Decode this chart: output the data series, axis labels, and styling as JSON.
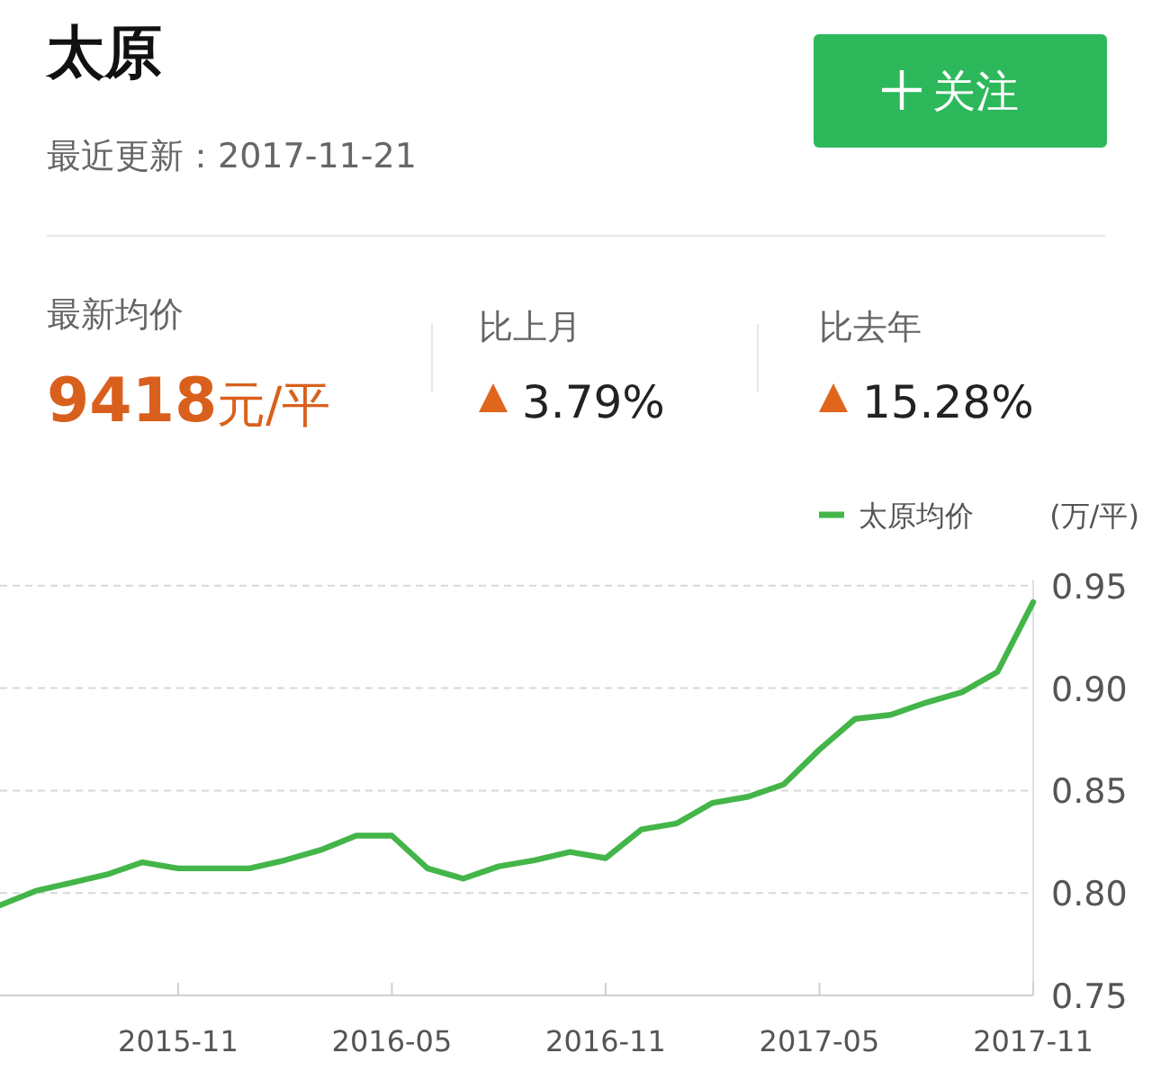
{
  "chart_data": {
    "type": "line",
    "title": "太原",
    "subtitle": "最近更新：2017-11-21",
    "annotations": [
      "关注",
      "最新均价",
      "9418元/平",
      "比上月",
      "3.79%",
      "比去年",
      "15.28%"
    ],
    "x": [
      "2015-06",
      "2015-07",
      "2015-08",
      "2015-09",
      "2015-10",
      "2015-11",
      "2015-12",
      "2016-01",
      "2016-02",
      "2016-03",
      "2016-04",
      "2016-05",
      "2016-06",
      "2016-07",
      "2016-08",
      "2016-09",
      "2016-10",
      "2016-11",
      "2016-12",
      "2017-01",
      "2017-02",
      "2017-03",
      "2017-04",
      "2017-05",
      "2017-06",
      "2017-07",
      "2017-08",
      "2017-09",
      "2017-10",
      "2017-11"
    ],
    "series": [
      {
        "name": "太原均价",
        "color": "#43b549",
        "values": [
          0.794,
          0.801,
          0.805,
          0.809,
          0.815,
          0.812,
          0.812,
          0.812,
          0.816,
          0.821,
          0.828,
          0.828,
          0.812,
          0.807,
          0.813,
          0.816,
          0.82,
          0.817,
          0.831,
          0.834,
          0.844,
          0.847,
          0.853,
          0.87,
          0.885,
          0.887,
          0.893,
          0.898,
          0.908,
          0.942
        ]
      }
    ],
    "ylabel": "(万/平)",
    "xlim": [
      "2015-06",
      "2017-11"
    ],
    "xticks": [
      "2015-11",
      "2016-05",
      "2016-11",
      "2017-05",
      "2017-11"
    ],
    "ylim": [
      0.75,
      0.953
    ],
    "yticks": [
      {
        "value": 0.75,
        "label": "0.75"
      },
      {
        "value": 0.8,
        "label": "0.80"
      },
      {
        "value": 0.85,
        "label": "0.85"
      },
      {
        "value": 0.9,
        "label": "0.90"
      },
      {
        "value": 0.95,
        "label": "0.95"
      }
    ],
    "grid": "y",
    "legend": "top right",
    "marker": "none",
    "line_style": "solid"
  }
}
